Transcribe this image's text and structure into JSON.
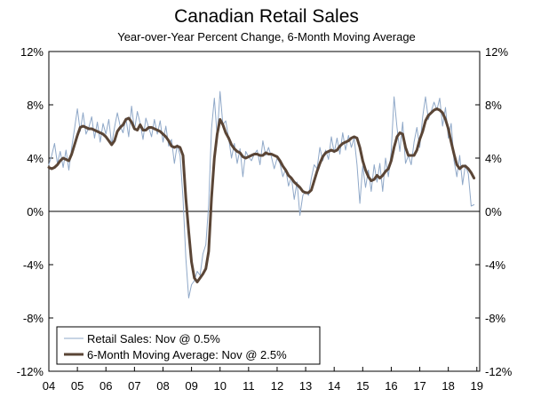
{
  "chart_data": {
    "type": "line",
    "title": "Canadian Retail Sales",
    "subtitle": "Year-over-Year Percent Change, 6-Month Moving Average",
    "xlabel": "",
    "ylabel": "",
    "xlim": [
      2004.0,
      2019.1
    ],
    "ylim": [
      -12,
      12
    ],
    "y_ticks": [
      -12,
      -8,
      -4,
      0,
      4,
      8,
      12
    ],
    "y_tick_labels": [
      "-12%",
      "-8%",
      "-4%",
      "0%",
      "4%",
      "8%",
      "12%"
    ],
    "x_ticks": [
      2004,
      2005,
      2006,
      2007,
      2008,
      2009,
      2010,
      2011,
      2012,
      2013,
      2014,
      2015,
      2016,
      2017,
      2018,
      2019
    ],
    "x_tick_labels": [
      "04",
      "05",
      "06",
      "07",
      "08",
      "09",
      "10",
      "11",
      "12",
      "13",
      "14",
      "15",
      "16",
      "17",
      "18",
      "19"
    ],
    "grid": false,
    "legend_position": "bottom-left",
    "colors": {
      "retail": "#8fa8c8",
      "moving_avg": "#5a4536",
      "axis": "#000000"
    },
    "series": [
      {
        "name": "Retail Sales: Nov @ 0.5%",
        "style": "thin",
        "x": [
          2004.0,
          2004.1,
          2004.2,
          2004.3,
          2004.4,
          2004.5,
          2004.6,
          2004.7,
          2004.8,
          2004.9,
          2005.0,
          2005.1,
          2005.2,
          2005.3,
          2005.4,
          2005.5,
          2005.6,
          2005.7,
          2005.8,
          2005.9,
          2006.0,
          2006.1,
          2006.2,
          2006.3,
          2006.4,
          2006.5,
          2006.6,
          2006.7,
          2006.8,
          2006.9,
          2007.0,
          2007.1,
          2007.2,
          2007.3,
          2007.4,
          2007.5,
          2007.6,
          2007.7,
          2007.8,
          2007.9,
          2008.0,
          2008.1,
          2008.2,
          2008.3,
          2008.4,
          2008.5,
          2008.6,
          2008.7,
          2008.8,
          2008.9,
          2009.0,
          2009.1,
          2009.2,
          2009.3,
          2009.4,
          2009.5,
          2009.6,
          2009.7,
          2009.8,
          2009.9,
          2010.0,
          2010.1,
          2010.2,
          2010.3,
          2010.4,
          2010.5,
          2010.6,
          2010.7,
          2010.8,
          2010.9,
          2011.0,
          2011.1,
          2011.2,
          2011.3,
          2011.4,
          2011.5,
          2011.6,
          2011.7,
          2011.8,
          2011.9,
          2012.0,
          2012.1,
          2012.2,
          2012.3,
          2012.4,
          2012.5,
          2012.6,
          2012.7,
          2012.8,
          2012.9,
          2013.0,
          2013.1,
          2013.2,
          2013.3,
          2013.4,
          2013.5,
          2013.6,
          2013.7,
          2013.8,
          2013.9,
          2014.0,
          2014.1,
          2014.2,
          2014.3,
          2014.4,
          2014.5,
          2014.6,
          2014.7,
          2014.8,
          2014.9,
          2015.0,
          2015.1,
          2015.2,
          2015.3,
          2015.4,
          2015.5,
          2015.6,
          2015.7,
          2015.8,
          2015.9,
          2016.0,
          2016.1,
          2016.2,
          2016.3,
          2016.4,
          2016.5,
          2016.6,
          2016.7,
          2016.8,
          2016.9,
          2017.0,
          2017.1,
          2017.2,
          2017.3,
          2017.4,
          2017.5,
          2017.6,
          2017.7,
          2017.8,
          2017.9,
          2018.0,
          2018.1,
          2018.2,
          2018.3,
          2018.4,
          2018.5,
          2018.6,
          2018.7,
          2018.8,
          2018.9
        ],
        "values": [
          3.5,
          4.2,
          5.1,
          3.6,
          4.5,
          3.3,
          4.6,
          3.1,
          4.8,
          6.2,
          7.7,
          6.0,
          7.4,
          5.8,
          6.3,
          7.1,
          5.5,
          6.7,
          5.2,
          6.6,
          5.8,
          6.9,
          5.0,
          6.3,
          7.4,
          6.4,
          5.9,
          7.0,
          5.6,
          7.9,
          6.1,
          7.5,
          6.6,
          5.4,
          7.0,
          6.3,
          5.6,
          6.9,
          5.8,
          6.8,
          5.2,
          6.4,
          4.9,
          5.4,
          3.6,
          5.0,
          4.2,
          1.0,
          -3.5,
          -6.5,
          -5.5,
          -5.2,
          -4.5,
          -4.8,
          -3.2,
          -2.5,
          0.5,
          6.2,
          8.5,
          5.6,
          9.0,
          6.5,
          6.8,
          5.5,
          4.0,
          5.1,
          3.6,
          4.7,
          2.6,
          4.5,
          4.1,
          3.8,
          4.3,
          4.6,
          3.5,
          5.3,
          4.2,
          4.8,
          4.1,
          3.2,
          4.0,
          3.6,
          2.6,
          3.2,
          1.9,
          2.6,
          0.9,
          2.2,
          -0.3,
          1.2,
          1.5,
          1.2,
          2.5,
          3.5,
          3.2,
          4.8,
          3.8,
          4.6,
          3.9,
          5.6,
          4.4,
          5.5,
          4.3,
          5.9,
          4.6,
          5.7,
          4.8,
          5.5,
          3.5,
          0.6,
          3.4,
          1.8,
          3.1,
          1.5,
          3.5,
          2.2,
          3.6,
          1.5,
          4.0,
          2.6,
          4.5,
          8.6,
          6.3,
          4.5,
          6.7,
          3.6,
          4.2,
          3.5,
          5.2,
          6.3,
          4.8,
          7.1,
          8.6,
          6.9,
          7.5,
          8.2,
          7.6,
          8.5,
          6.4,
          7.8,
          5.5,
          6.6,
          3.8,
          2.6,
          4.2,
          2.0,
          3.5,
          2.8,
          0.4,
          0.5
        ]
      },
      {
        "name": "6-Month Moving Average: Nov @ 2.5%",
        "style": "thick",
        "x": [
          2004.0,
          2004.1,
          2004.2,
          2004.3,
          2004.4,
          2004.5,
          2004.6,
          2004.7,
          2004.8,
          2004.9,
          2005.0,
          2005.1,
          2005.2,
          2005.3,
          2005.4,
          2005.5,
          2005.6,
          2005.7,
          2005.8,
          2005.9,
          2006.0,
          2006.1,
          2006.2,
          2006.3,
          2006.4,
          2006.5,
          2006.6,
          2006.7,
          2006.8,
          2006.9,
          2007.0,
          2007.1,
          2007.2,
          2007.3,
          2007.4,
          2007.5,
          2007.6,
          2007.7,
          2007.8,
          2007.9,
          2008.0,
          2008.1,
          2008.2,
          2008.3,
          2008.4,
          2008.5,
          2008.6,
          2008.7,
          2008.8,
          2008.9,
          2009.0,
          2009.1,
          2009.2,
          2009.3,
          2009.4,
          2009.5,
          2009.6,
          2009.7,
          2009.8,
          2009.9,
          2010.0,
          2010.1,
          2010.2,
          2010.3,
          2010.4,
          2010.5,
          2010.6,
          2010.7,
          2010.8,
          2010.9,
          2011.0,
          2011.1,
          2011.2,
          2011.3,
          2011.4,
          2011.5,
          2011.6,
          2011.7,
          2011.8,
          2011.9,
          2012.0,
          2012.1,
          2012.2,
          2012.3,
          2012.4,
          2012.5,
          2012.6,
          2012.7,
          2012.8,
          2012.9,
          2013.0,
          2013.1,
          2013.2,
          2013.3,
          2013.4,
          2013.5,
          2013.6,
          2013.7,
          2013.8,
          2013.9,
          2014.0,
          2014.1,
          2014.2,
          2014.3,
          2014.4,
          2014.5,
          2014.6,
          2014.7,
          2014.8,
          2014.9,
          2015.0,
          2015.1,
          2015.2,
          2015.3,
          2015.4,
          2015.5,
          2015.6,
          2015.7,
          2015.8,
          2015.9,
          2016.0,
          2016.1,
          2016.2,
          2016.3,
          2016.4,
          2016.5,
          2016.6,
          2016.7,
          2016.8,
          2016.9,
          2017.0,
          2017.1,
          2017.2,
          2017.3,
          2017.4,
          2017.5,
          2017.6,
          2017.7,
          2017.8,
          2017.9,
          2018.0,
          2018.1,
          2018.2,
          2018.3,
          2018.4,
          2018.5,
          2018.6,
          2018.7,
          2018.8,
          2018.9
        ],
        "values": [
          3.3,
          3.2,
          3.3,
          3.5,
          3.8,
          4.0,
          3.9,
          3.8,
          4.3,
          5.0,
          5.7,
          6.3,
          6.4,
          6.3,
          6.2,
          6.2,
          6.1,
          6.0,
          5.9,
          5.8,
          5.6,
          5.3,
          5.0,
          5.3,
          6.0,
          6.3,
          6.5,
          6.9,
          7.0,
          6.7,
          6.2,
          6.1,
          6.5,
          6.1,
          6.1,
          6.3,
          6.3,
          6.2,
          6.1,
          6.0,
          5.8,
          5.6,
          5.3,
          4.9,
          4.8,
          4.9,
          4.8,
          4.2,
          1.0,
          -1.5,
          -3.8,
          -5.0,
          -5.3,
          -5.0,
          -4.7,
          -4.3,
          -3.0,
          1.0,
          4.0,
          5.8,
          6.9,
          6.5,
          5.9,
          5.5,
          5.0,
          4.7,
          4.5,
          4.4,
          4.1,
          4.0,
          4.1,
          4.2,
          4.3,
          4.3,
          4.2,
          4.2,
          4.4,
          4.3,
          4.3,
          4.2,
          4.1,
          3.8,
          3.4,
          3.1,
          2.7,
          2.5,
          2.2,
          2.0,
          1.8,
          1.5,
          1.4,
          1.4,
          1.6,
          2.3,
          3.0,
          3.6,
          4.1,
          4.4,
          4.5,
          4.6,
          4.5,
          4.6,
          4.9,
          5.1,
          5.2,
          5.3,
          5.5,
          5.6,
          5.5,
          4.8,
          3.8,
          3.1,
          2.6,
          2.3,
          2.4,
          2.7,
          2.5,
          2.7,
          3.0,
          3.2,
          3.8,
          4.8,
          5.6,
          5.9,
          5.8,
          4.8,
          4.2,
          4.2,
          4.2,
          4.6,
          5.4,
          6.0,
          6.8,
          7.2,
          7.4,
          7.6,
          7.7,
          7.6,
          7.4,
          6.9,
          6.2,
          5.2,
          4.3,
          3.5,
          3.2,
          3.4,
          3.4,
          3.2,
          2.9,
          2.5
        ]
      }
    ]
  }
}
